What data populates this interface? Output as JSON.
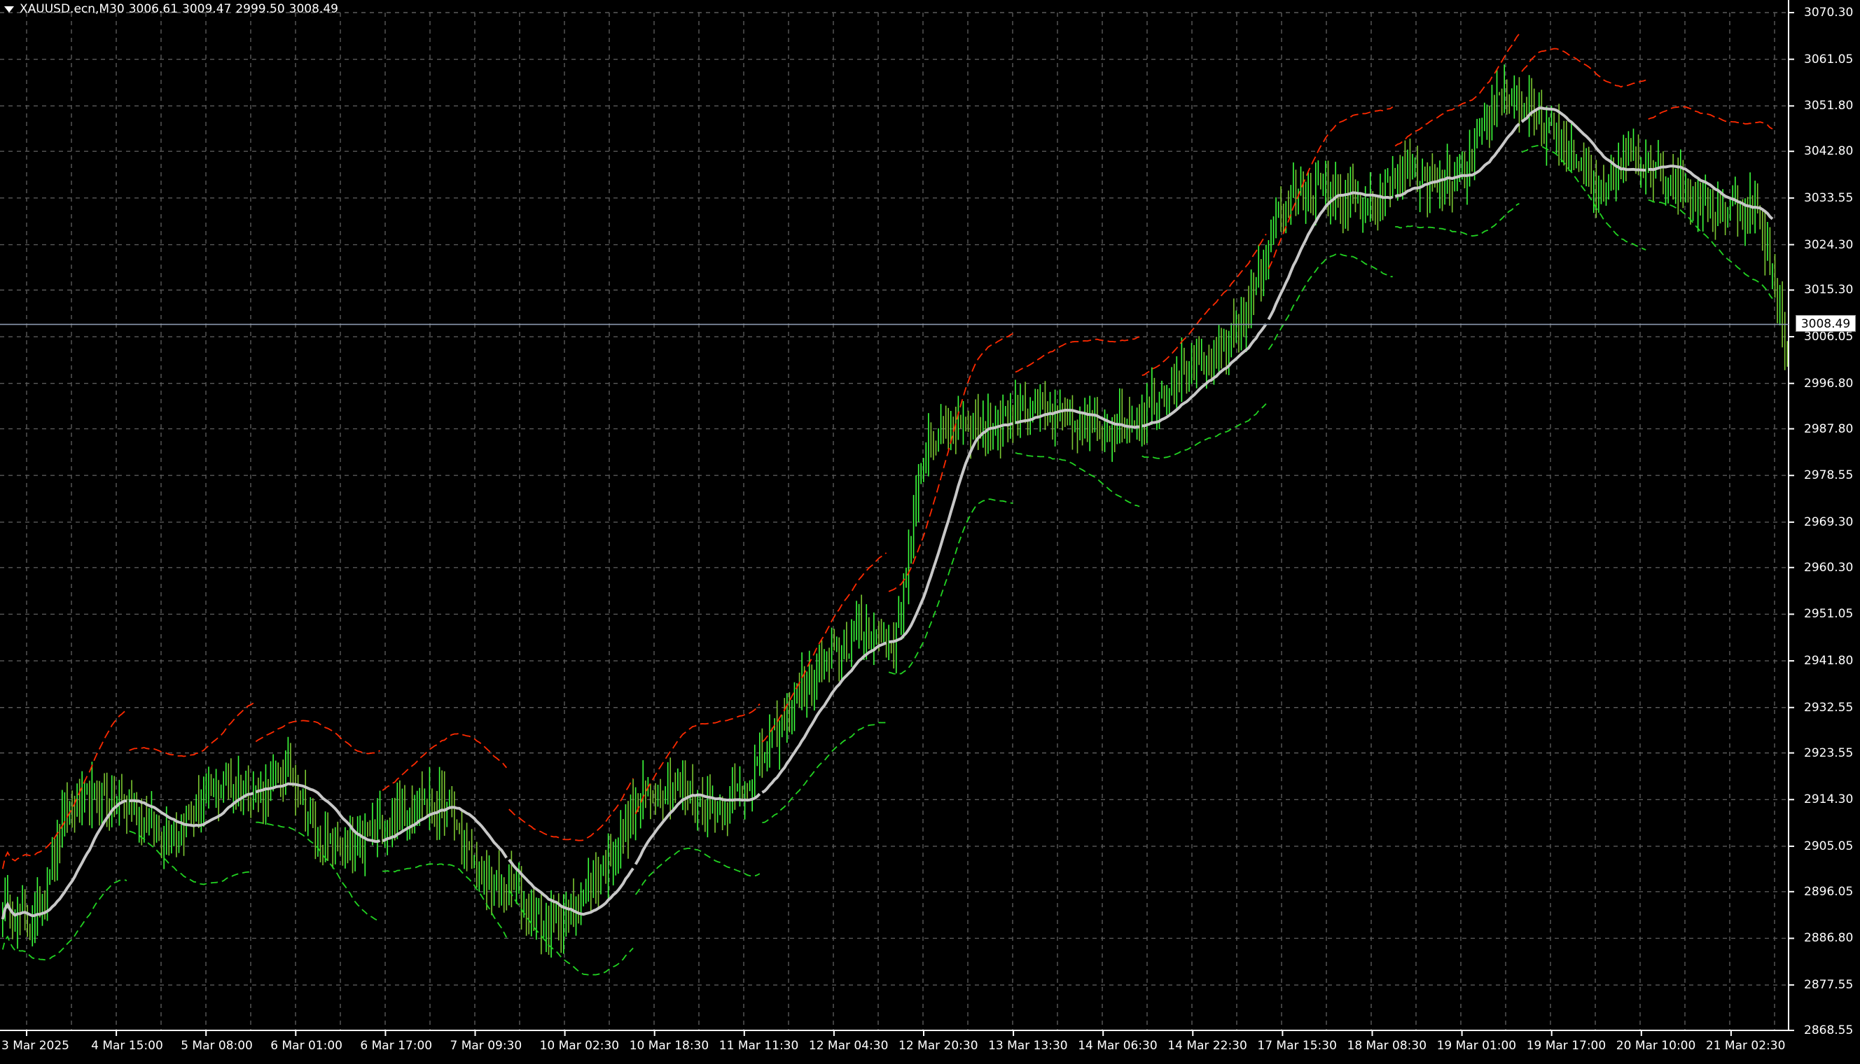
{
  "header": {
    "symbol": "XAUUSD.ecn,M30",
    "open": "3006.61",
    "high": "3009.47",
    "low": "2999.50",
    "close": "3008.49"
  },
  "current_price": "3008.49",
  "colors": {
    "background": "#000000",
    "grid": "#5a5a5a",
    "up_candle": "#3cff3c",
    "down_candle": "#7cc832",
    "upper_band": "#ff2a00",
    "lower_band": "#22d422",
    "moving_average": "#c8c8c8",
    "price_line": "#8c9ab0"
  },
  "price_axis": [
    "3070.30",
    "3061.05",
    "3051.80",
    "3042.80",
    "3033.55",
    "3024.30",
    "3015.30",
    "3006.05",
    "2996.80",
    "2987.80",
    "2978.55",
    "2969.30",
    "2960.30",
    "2951.05",
    "2941.80",
    "2932.55",
    "2923.55",
    "2914.30",
    "2905.05",
    "2896.05",
    "2886.80",
    "2877.55",
    "2868.55"
  ],
  "time_axis": [
    "3 Mar 2025",
    "4 Mar 15:00",
    "5 Mar 08:00",
    "6 Mar 01:00",
    "6 Mar 17:00",
    "7 Mar 09:30",
    "10 Mar 02:30",
    "10 Mar 18:30",
    "11 Mar 11:30",
    "12 Mar 04:30",
    "12 Mar 20:30",
    "13 Mar 13:30",
    "14 Mar 06:30",
    "14 Mar 22:30",
    "17 Mar 15:30",
    "18 Mar 08:30",
    "19 Mar 01:00",
    "19 Mar 17:00",
    "20 Mar 10:00",
    "21 Mar 02:30"
  ],
  "chart_data": {
    "type": "line",
    "ylim": [
      2868.55,
      3070.3
    ],
    "series": [
      {
        "values": [
          2893,
          2890,
          2912,
          2915,
          2913,
          2907,
          2912,
          2918,
          2916,
          2920,
          2905,
          2904,
          2910,
          2915,
          2912,
          2898,
          2897,
          2889,
          2893,
          2902,
          2915,
          2917,
          2913,
          2915,
          2924,
          2936,
          2942,
          2948,
          2945,
          2985,
          2990,
          2988,
          2993,
          2990,
          2988,
          2988,
          2993,
          2999,
          3001,
          3010,
          3030,
          3036,
          3034,
          3031,
          3040,
          3035,
          3040,
          3055,
          3050,
          3044,
          3035,
          3043,
          3040,
          3034,
          3031,
          3032,
          3005
        ]
      }
    ]
  }
}
